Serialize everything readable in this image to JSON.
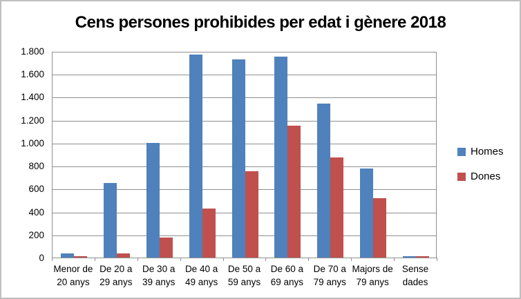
{
  "title": "Cens persones prohibides per edat i gènere 2018",
  "legend": {
    "items": [
      {
        "label": "Homes",
        "color": "#4F81BD"
      },
      {
        "label": "Dones",
        "color": "#C0504D"
      }
    ]
  },
  "colors": {
    "homes": "#4F81BD",
    "dones": "#C0504D",
    "gridline": "#8e8e8e",
    "plot_border": "#8e8e8e",
    "frame_border": "#bfbfbf",
    "text": "#000000",
    "background": "#ffffff"
  },
  "chart_data": {
    "type": "bar",
    "title": "Cens persones prohibides per edat i gènere 2018",
    "categories": [
      "Menor de 20 anys",
      "De 20 a 29 anys",
      "De 30 a 39 anys",
      "De 40 a 49 anys",
      "De 50 a 59 anys",
      "De 60 a 69 anys",
      "De 70 a 79 anys",
      "Majors de 79 anys",
      "Sense dades"
    ],
    "category_lines": [
      [
        "Menor de",
        "20 anys"
      ],
      [
        "De 20 a",
        "29 anys"
      ],
      [
        "De 30 a",
        "39 anys"
      ],
      [
        "De 40 a",
        "49 anys"
      ],
      [
        "De 50 a",
        "59 anys"
      ],
      [
        "De 60 a",
        "69 anys"
      ],
      [
        "De 70 a",
        "79 anys"
      ],
      [
        "Majors de",
        "79 anys"
      ],
      [
        "Sense",
        "dades"
      ]
    ],
    "series": [
      {
        "name": "Homes",
        "color": "#4F81BD",
        "values": [
          35,
          650,
          1000,
          1770,
          1730,
          1750,
          1340,
          775,
          15
        ]
      },
      {
        "name": "Dones",
        "color": "#C0504D",
        "values": [
          15,
          35,
          175,
          425,
          750,
          1150,
          870,
          515,
          15
        ]
      }
    ],
    "xlabel": "",
    "ylabel": "",
    "ylim": [
      0,
      1800
    ],
    "ytick_step": 200,
    "ytick_labels": [
      "0",
      "200",
      "400",
      "600",
      "800",
      "1.000",
      "1.200",
      "1.400",
      "1.600",
      "1.800"
    ],
    "grid": true,
    "legend_position": "right"
  }
}
